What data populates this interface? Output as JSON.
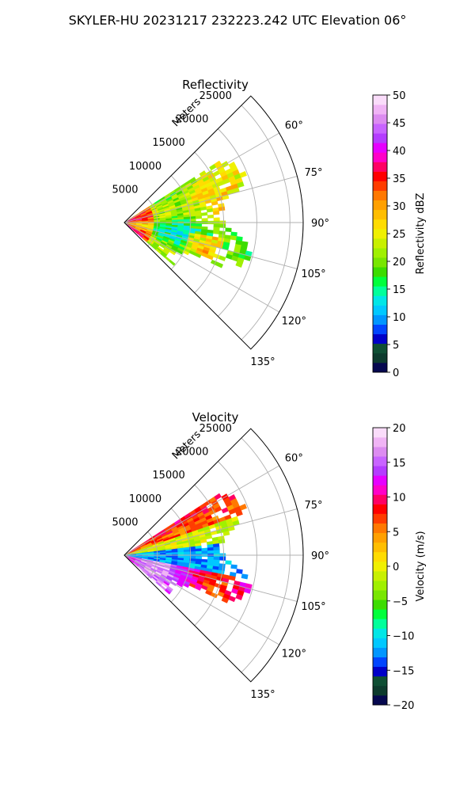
{
  "suptitle": "SKYLER-HU  20231217  232223.242 UTC Elevation 06°",
  "chart_data": [
    {
      "type": "heatmap",
      "projection": "polar-sector",
      "title": "Reflectivity",
      "radial_label": "Meters",
      "radial_ticks": [
        5000,
        10000,
        15000,
        20000,
        25000
      ],
      "radial_tick_labels": [
        "5000",
        "10000",
        "15000",
        "20000",
        "25000"
      ],
      "rlim": [
        0,
        27000
      ],
      "azimuth_range_deg": [
        45,
        135
      ],
      "azimuth_ticks_deg": [
        60,
        75,
        90,
        105,
        120,
        135
      ],
      "azimuth_tick_labels": [
        "60°",
        "75°",
        "90°",
        "105°",
        "120°",
        "135°"
      ],
      "colorbar": {
        "label": "Reflectivity dBZ",
        "range": [
          0,
          50
        ],
        "ticks": [
          0,
          5,
          10,
          15,
          20,
          25,
          30,
          35,
          40,
          45,
          50
        ],
        "tick_labels": [
          "0",
          "5",
          "10",
          "15",
          "20",
          "25",
          "30",
          "35",
          "40",
          "45",
          "50"
        ],
        "colors": [
          "#06084f",
          "#0d3b2d",
          "#0f4f34",
          "#0000c8",
          "#0045ff",
          "#0096ff",
          "#00c8ff",
          "#00e6e6",
          "#00ff9a",
          "#00ff3c",
          "#3cdc00",
          "#78e600",
          "#a0f000",
          "#c8f000",
          "#f0f000",
          "#ffdc00",
          "#ffbe00",
          "#ffa000",
          "#ff7800",
          "#ff3c00",
          "#ff0000",
          "#ff0064",
          "#ff00c8",
          "#e600ff",
          "#b43cff",
          "#c864ff",
          "#dc8cf0",
          "#f0b4f5",
          "#fadcfa"
        ]
      },
      "data_summary": "Sector scan from 45° to ~130° azimuth; echoes mostly 15–30 dBZ out to ~22 km, scattered cells up to ~38 dBZ near the radar and at ~10–14 km toward 100–110°."
    },
    {
      "type": "heatmap",
      "projection": "polar-sector",
      "title": "Velocity",
      "radial_label": "Meters",
      "radial_ticks": [
        5000,
        10000,
        15000,
        20000,
        25000
      ],
      "radial_tick_labels": [
        "5000",
        "10000",
        "15000",
        "20000",
        "25000"
      ],
      "rlim": [
        0,
        27000
      ],
      "azimuth_range_deg": [
        45,
        135
      ],
      "azimuth_ticks_deg": [
        60,
        75,
        90,
        105,
        120,
        135
      ],
      "azimuth_tick_labels": [
        "60°",
        "75°",
        "90°",
        "105°",
        "120°",
        "135°"
      ],
      "colorbar": {
        "label": "Velocity (m/s)",
        "range": [
          -20,
          20
        ],
        "ticks": [
          -20,
          -15,
          -10,
          -5,
          0,
          5,
          10,
          15,
          20
        ],
        "tick_labels": [
          "−20",
          "−15",
          "−10",
          "−5",
          "0",
          "5",
          "10",
          "15",
          "20"
        ],
        "colors": [
          "#06084f",
          "#0d3b2d",
          "#0f4f34",
          "#0000c8",
          "#0045ff",
          "#0096ff",
          "#00c8ff",
          "#00e6e6",
          "#00ff9a",
          "#00ff3c",
          "#3cdc00",
          "#78e600",
          "#a0f000",
          "#c8f000",
          "#f0f000",
          "#ffdc00",
          "#ffbe00",
          "#ffa000",
          "#ff7800",
          "#ff3c00",
          "#ff0000",
          "#ff0064",
          "#ff00c8",
          "#e600ff",
          "#b43cff",
          "#c864ff",
          "#dc8cf0",
          "#f0b4f5",
          "#fadcfa"
        ]
      },
      "data_summary": "Outbound (+5 to +10 m/s, red/orange) along the northern edge near 45–70°; inbound (−10 to −15 m/s, cyan/green) band along 75–100°; strong outbound (+12 to +18 m/s, magenta/purple) south of ~100°, with folded pixels along the boundary."
    }
  ]
}
